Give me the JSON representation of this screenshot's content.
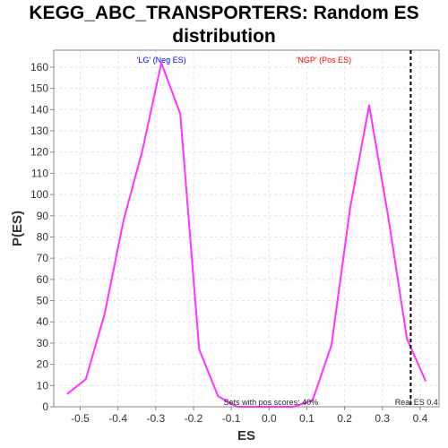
{
  "chart_data": {
    "type": "line",
    "title_line1": "KEGG_ABC_TRANSPORTERS: Random ES",
    "title_line2": "distribution",
    "xlabel": "ES",
    "ylabel": "P(ES)",
    "xlim": [
      -0.57,
      0.45
    ],
    "ylim": [
      0,
      168
    ],
    "x_ticks": [
      -0.5,
      -0.4,
      -0.3,
      -0.2,
      -0.1,
      0.0,
      0.1,
      0.2,
      0.3,
      0.4
    ],
    "x_tick_labels": [
      "-0.5",
      "-0.4",
      "-0.3",
      "-0.2",
      "-0.1",
      "0.0",
      "0.1",
      "0.2",
      "0.3",
      "0.4"
    ],
    "y_ticks": [
      0,
      10,
      20,
      30,
      40,
      50,
      60,
      70,
      80,
      90,
      100,
      110,
      120,
      130,
      140,
      150,
      160
    ],
    "grid": true,
    "series": [
      {
        "color": "#ff33ff",
        "x": [
          -0.535,
          -0.485,
          -0.435,
          -0.385,
          -0.335,
          -0.285,
          -0.235,
          -0.185,
          -0.135,
          -0.085,
          -0.035,
          0.015,
          0.065,
          0.115,
          0.165,
          0.215,
          0.265,
          0.315,
          0.365,
          0.415
        ],
        "y": [
          6,
          13,
          44,
          88,
          121,
          162,
          138,
          27,
          5,
          0,
          0,
          0,
          0,
          3,
          29,
          94,
          142,
          90,
          32,
          12
        ]
      }
    ],
    "vline": {
      "x": 0.375,
      "style": "dashed",
      "color": "#000000"
    },
    "annotations": {
      "neg_label": "'LG' (Neg ES)",
      "neg_color": "#0000ff",
      "pos_label": "'NGP' (Pos ES)",
      "pos_color": "#ff0000",
      "pos_scores": "Sets with pos scores: 40%",
      "real_es": "Real ES 0.4"
    }
  }
}
